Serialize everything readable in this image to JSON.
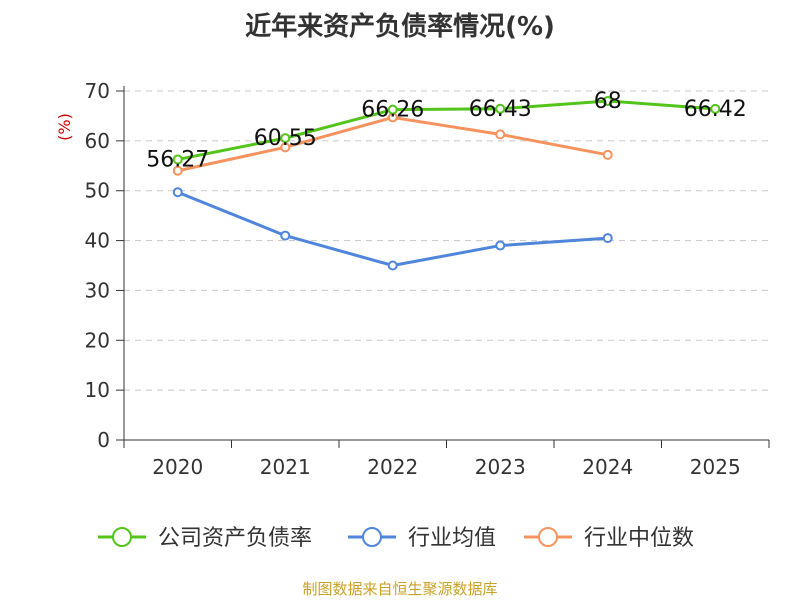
{
  "title": "近年来资产负债率情况(%)",
  "source": "制图数据来自恒生聚源数据库",
  "chart_data": {
    "type": "line",
    "title": "近年来资产负债率情况(%)",
    "ylabel": "(%)",
    "xlabel": "",
    "categories": [
      "2020",
      "2021",
      "2022",
      "2023",
      "2024",
      "2025"
    ],
    "ylim": [
      0,
      70
    ],
    "yticks": [
      0,
      10,
      20,
      30,
      40,
      50,
      60,
      70
    ],
    "grid": true,
    "legend_position": "bottom",
    "series": [
      {
        "name": "公司资产负债率",
        "color": "#52c41a",
        "values": [
          56.27,
          60.55,
          66.26,
          66.43,
          68,
          66.42
        ],
        "labels": [
          "56.27",
          "60.55",
          "66.26",
          "66.43",
          "68",
          "66.42"
        ]
      },
      {
        "name": "行业均值",
        "color": "#4f86db",
        "values": [
          49.7,
          41.0,
          35.0,
          39.0,
          40.5,
          null
        ]
      },
      {
        "name": "行业中位数",
        "color": "#f5935e",
        "values": [
          54.0,
          58.7,
          64.7,
          61.3,
          57.2,
          null
        ]
      }
    ]
  }
}
